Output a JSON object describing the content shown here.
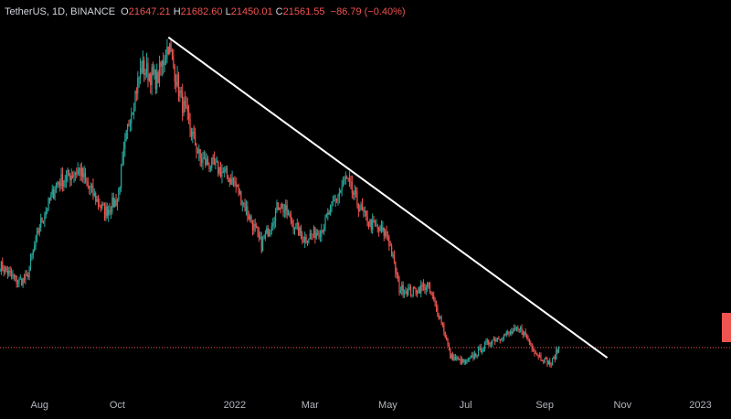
{
  "legend": {
    "symbol": "TetherUS, 1D, BINANCE",
    "o_label": "O",
    "o_value": "21647.21",
    "h_label": "H",
    "h_value": "21682.60",
    "l_label": "L",
    "l_value": "21450.01",
    "c_label": "C",
    "c_value": "21561.55",
    "change": "−86.79 (−0.40%)"
  },
  "colors": {
    "background": "#000000",
    "up": "#26a69a",
    "down": "#ef5350",
    "trendline": "#ffffff",
    "axis_text": "#b2b5be"
  },
  "chart_data": {
    "type": "line",
    "title": "",
    "xlabel": "",
    "ylabel": "",
    "x_tick_labels": [
      "Aug",
      "Oct",
      "2022",
      "Mar",
      "May",
      "Jul",
      "Sep",
      "Nov",
      "2023"
    ],
    "x_tick_dates": [
      "2021-08-01",
      "2021-10-01",
      "2022-01-01",
      "2022-03-01",
      "2022-05-01",
      "2022-07-01",
      "2022-09-01",
      "2022-11-01",
      "2023-01-01"
    ],
    "x_range": [
      "2021-07-01",
      "2023-01-25"
    ],
    "y_range": [
      16000,
      70000
    ],
    "grid": false,
    "last_close": 21561.55,
    "series": [
      {
        "x": [
          "2021-07-01",
          "2021-07-15",
          "2021-07-22",
          "2021-08-01",
          "2021-08-15",
          "2021-09-01",
          "2021-09-08",
          "2021-09-21",
          "2021-10-01",
          "2021-10-10",
          "2021-10-20",
          "2021-11-01",
          "2021-11-10",
          "2021-11-20",
          "2021-12-05",
          "2021-12-20",
          "2022-01-01",
          "2022-01-22",
          "2022-02-05",
          "2022-02-24",
          "2022-03-10",
          "2022-03-29",
          "2022-04-15",
          "2022-05-01",
          "2022-05-10",
          "2022-05-20",
          "2022-06-01",
          "2022-06-13",
          "2022-06-19",
          "2022-07-01",
          "2022-07-20",
          "2022-08-01",
          "2022-08-14",
          "2022-08-26",
          "2022-09-06",
          "2022-09-12"
        ],
        "values": [
          34000,
          31500,
          32000,
          40000,
          46500,
          48500,
          46000,
          42000,
          44000,
          56000,
          64000,
          62000,
          67500,
          59000,
          50000,
          48500,
          46500,
          37000,
          43500,
          38000,
          39500,
          47000,
          40500,
          38500,
          30500,
          30000,
          31000,
          25000,
          20200,
          19200,
          22500,
          23500,
          24300,
          20500,
          19000,
          21561.55
        ]
      }
    ],
    "trendline": {
      "x": [
        "2021-11-10",
        "2022-10-20"
      ],
      "y": [
        68500,
        20000
      ]
    }
  }
}
